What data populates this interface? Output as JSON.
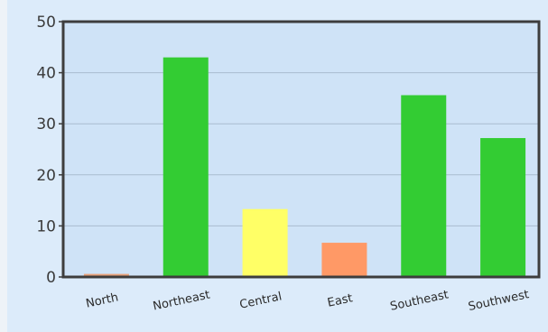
{
  "chart_data": {
    "type": "bar",
    "categories": [
      "North",
      "Northeast",
      "Central",
      "East",
      "Southeast",
      "Southwest"
    ],
    "values": [
      0.6,
      43,
      13.3,
      6.7,
      35.6,
      27.2
    ],
    "colors": [
      "#e9a27a",
      "#33cc33",
      "#ffff66",
      "#ff9966",
      "#33cc33",
      "#33cc33"
    ],
    "ylim": [
      0,
      50
    ],
    "yticks": [
      0,
      10,
      20,
      30,
      40,
      50
    ],
    "grid": true,
    "legend": "none"
  }
}
